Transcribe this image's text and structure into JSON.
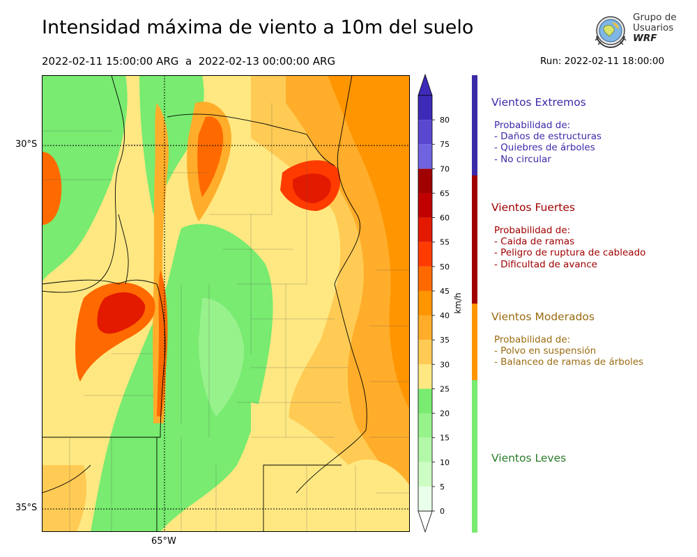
{
  "title": "Intensidad máxima de viento a 10m del suelo",
  "period": {
    "start": "2022-02-11 15:00:00 ARG",
    "separator": "a",
    "end": "2022-02-13 00:00:00 ARG"
  },
  "run": "Run: 2022-02-11 18:00:00",
  "logo": {
    "line1": "Grupo de",
    "line2": "Usuarios",
    "line3": "WRF"
  },
  "map": {
    "lat_labels": [
      "30°S",
      "35°S"
    ],
    "lon_labels": [
      "65°W"
    ]
  },
  "colorbar": {
    "unit": "km/h",
    "ticks": [
      "0",
      "5",
      "10",
      "15",
      "20",
      "25",
      "30",
      "35",
      "40",
      "45",
      "50",
      "55",
      "60",
      "65",
      "70",
      "75",
      "80"
    ],
    "colors": [
      "#eaffea",
      "#cdfdc4",
      "#b3f8a8",
      "#98f28c",
      "#78eb70",
      "#ffe882",
      "#ffcb55",
      "#ffad2a",
      "#ff9500",
      "#ff6a00",
      "#ff3b00",
      "#e31a00",
      "#c00000",
      "#a00000",
      "#7063e0",
      "#5a48d0",
      "#3e2ab8"
    ],
    "extend_color": "#3e2ab8"
  },
  "categories": [
    {
      "title": "Vientos Extremos",
      "color": "#3a2aa8",
      "bar_color": "#3a2aa8",
      "lines": [
        "Probabilidad de:",
        "- Daños de estructuras",
        "- Quiebres de árboles",
        "- No circular"
      ]
    },
    {
      "title": "Vientos Fuertes",
      "color": "#a00000",
      "bar_color": "#a00000",
      "lines": [
        "Probabilidad de:",
        "- Caida de ramas",
        "- Peligro de ruptura de cableado",
        "- Dificultad de avance"
      ]
    },
    {
      "title": "Vientos Moderados",
      "color": "#9a6a10",
      "bar_color": "#ff9500",
      "lines": [
        "Probabilidad de:",
        "- Polvo en suspensión",
        "- Balanceo de ramas de árboles"
      ]
    },
    {
      "title": "Vientos Leves",
      "color": "#2a7a2a",
      "bar_color": "#78eb70",
      "lines": []
    }
  ]
}
